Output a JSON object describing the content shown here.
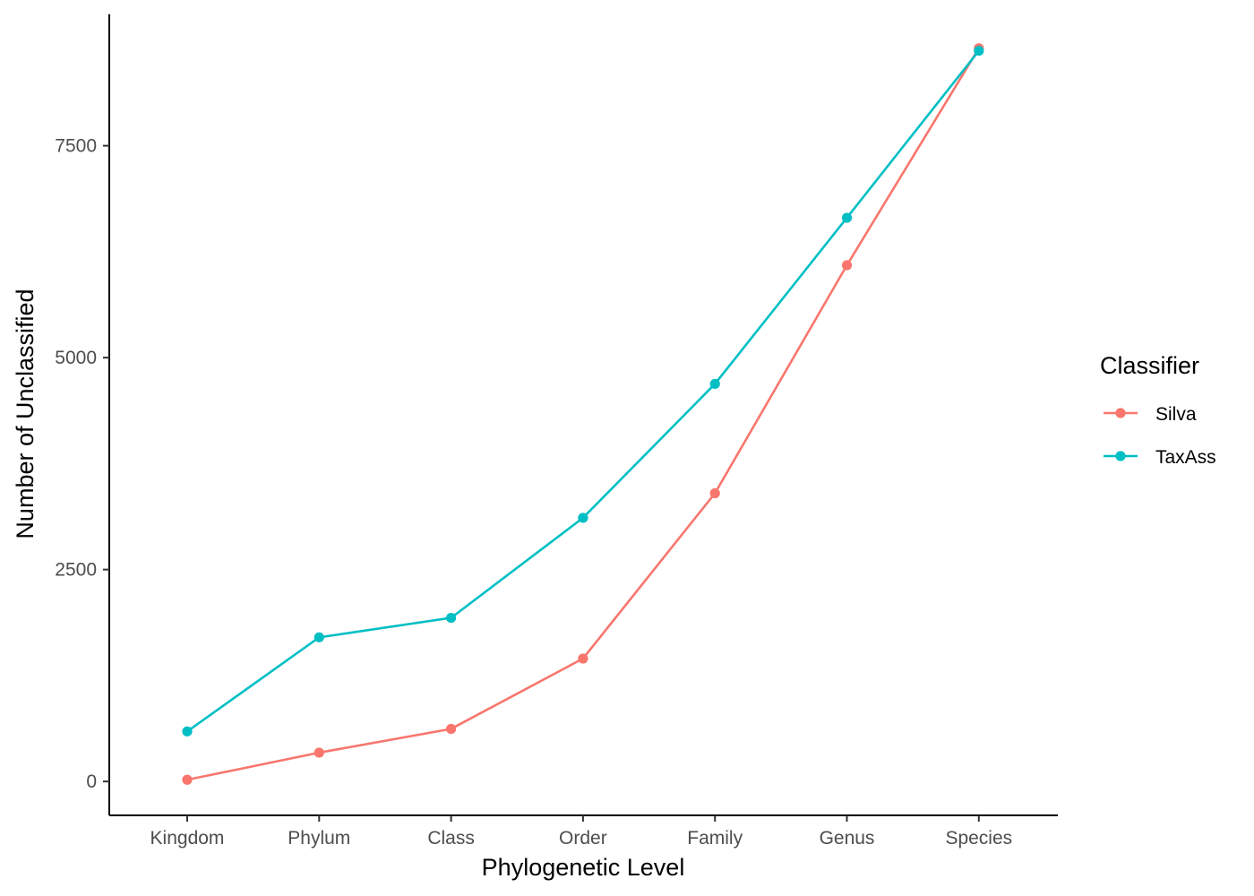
{
  "chart_data": {
    "type": "line",
    "title": "",
    "xlabel": "Phylogenetic Level",
    "ylabel": "Number of Unclassified",
    "categories": [
      "Kingdom",
      "Phylum",
      "Class",
      "Order",
      "Family",
      "Genus",
      "Species"
    ],
    "series": [
      {
        "name": "Silva",
        "color": "#F8766D",
        "values": [
          20,
          340,
          620,
          1450,
          3400,
          6090,
          8650
        ]
      },
      {
        "name": "TaxAss",
        "color": "#00BFC4",
        "values": [
          590,
          1700,
          1930,
          3110,
          4690,
          6650,
          8620
        ]
      }
    ],
    "ylim": [
      -400,
      9050
    ],
    "yticks": [
      0,
      2500,
      5000,
      7500
    ],
    "ytick_labels": [
      "0",
      "2500",
      "5000",
      "7500"
    ],
    "grid": false,
    "legend": {
      "title": "Classifier",
      "placement": "right"
    }
  }
}
